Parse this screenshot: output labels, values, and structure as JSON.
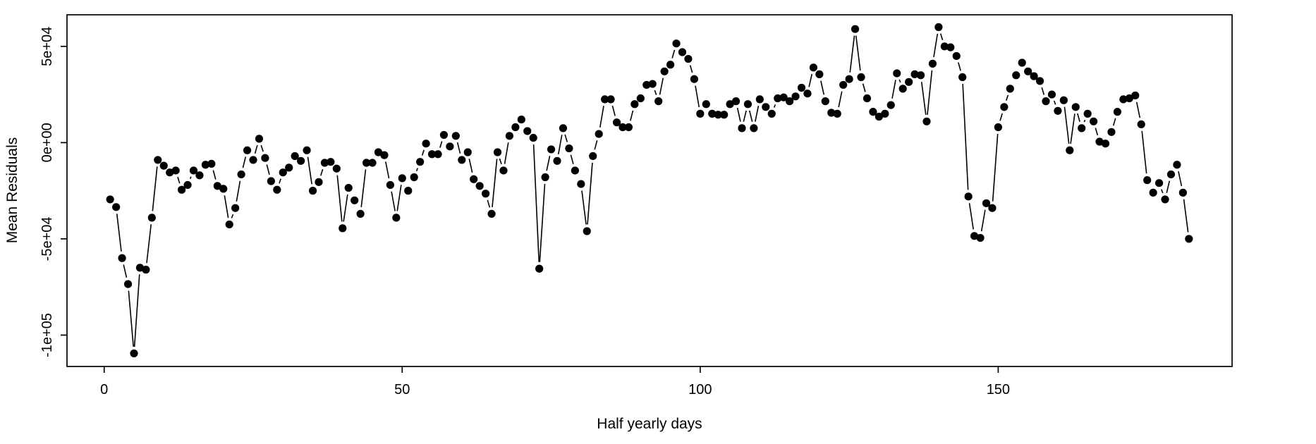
{
  "chart_data": {
    "type": "line",
    "style": "points-with-connecting-segments",
    "title": "",
    "xlabel": "Half yearly days",
    "ylabel": "Mean Residuals",
    "x_tick_values": [
      0,
      50,
      100,
      150
    ],
    "x_tick_labels": [
      "0",
      "50",
      "100",
      "150"
    ],
    "y_tick_values": [
      50000,
      0,
      -50000,
      -100000
    ],
    "y_tick_labels": [
      "5e+04",
      "0e+00",
      "-5e+04",
      "-1e+05"
    ],
    "xlim": [
      -6.24,
      189.24
    ],
    "ylim": [
      -116300,
      66400
    ],
    "x_start": 1,
    "grid": false,
    "legend": "none",
    "point_color": "#000000",
    "line_color": "#000000",
    "values": [
      -29500,
      -33500,
      -60000,
      -73500,
      -109500,
      -65000,
      -66000,
      -39000,
      -9000,
      -12000,
      -15500,
      -14500,
      -24500,
      -22000,
      -14500,
      -17000,
      -11500,
      -11000,
      -22500,
      -24000,
      -42500,
      -34000,
      -16500,
      -4000,
      -9000,
      2000,
      -8000,
      -20000,
      -24500,
      -15500,
      -13000,
      -7000,
      -9500,
      -4000,
      -25000,
      -20500,
      -10500,
      -10000,
      -13500,
      -44500,
      -23500,
      -30000,
      -37000,
      -10500,
      -10500,
      -5000,
      -6500,
      -22000,
      -39000,
      -18500,
      -25000,
      -18000,
      -10000,
      -500,
      -6000,
      -6000,
      4000,
      -2000,
      3500,
      -9000,
      -5000,
      -19000,
      -22500,
      -26500,
      -37000,
      -5000,
      -14500,
      3500,
      8000,
      12000,
      6000,
      2500,
      -65500,
      -18000,
      -3500,
      -9500,
      7500,
      -3000,
      -14500,
      -21500,
      -46000,
      -7000,
      4500,
      22500,
      22500,
      10500,
      8000,
      8000,
      20000,
      23000,
      30000,
      30500,
      21500,
      37000,
      40500,
      51500,
      47000,
      43500,
      33000,
      15000,
      20000,
      15000,
      14500,
      14500,
      20000,
      21500,
      7500,
      20000,
      7500,
      22500,
      18500,
      15000,
      23000,
      23500,
      21500,
      24000,
      28500,
      25500,
      39000,
      35500,
      21500,
      15500,
      15000,
      30000,
      33000,
      59000,
      34000,
      23000,
      16000,
      13500,
      15000,
      19500,
      36000,
      28000,
      31500,
      35500,
      35000,
      11000,
      41000,
      60000,
      50000,
      49500,
      45000,
      34000,
      -28000,
      -48500,
      -49500,
      -31500,
      -34000,
      8000,
      18500,
      28000,
      35000,
      41500,
      37000,
      34500,
      32000,
      21500,
      25000,
      16500,
      22000,
      -4000,
      18500,
      7500,
      15000,
      11000,
      500,
      -500,
      5500,
      16000,
      22500,
      23000,
      24500,
      9500,
      -19500,
      -26000,
      -21000,
      -29500,
      -16500,
      -11500,
      -26000,
      -50000
    ]
  }
}
